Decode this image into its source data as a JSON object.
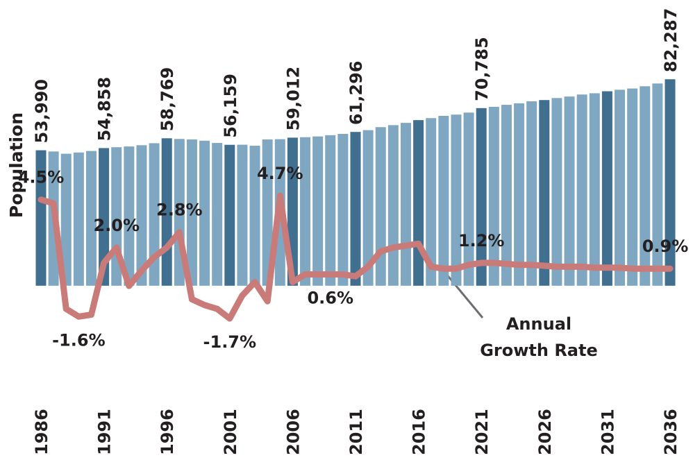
{
  "chart_data": {
    "type": "bar-line",
    "categories": [
      "1986",
      null,
      null,
      null,
      null,
      "1991",
      null,
      null,
      null,
      null,
      "1996",
      null,
      null,
      null,
      null,
      "2001",
      null,
      null,
      null,
      null,
      "2006",
      null,
      null,
      null,
      null,
      "2011",
      null,
      null,
      null,
      null,
      "2016",
      null,
      null,
      null,
      null,
      "2021",
      null,
      null,
      null,
      null,
      "2026",
      null,
      null,
      null,
      null,
      "2031",
      null,
      null,
      null,
      null,
      "2036"
    ],
    "series": [
      {
        "name": "Population",
        "color": "#80a7c1",
        "highlight_color": "#416f90",
        "values": [
          53990,
          53500,
          52600,
          53100,
          53700,
          54858,
          55200,
          55500,
          56000,
          56800,
          58769,
          58500,
          58300,
          57800,
          56900,
          56159,
          56200,
          55800,
          58300,
          58400,
          59012,
          59200,
          59500,
          60000,
          60500,
          61296,
          62000,
          63200,
          64000,
          64900,
          66000,
          66800,
          67700,
          68200,
          69000,
          70785,
          71300,
          72100,
          72700,
          73500,
          74000,
          74800,
          75400,
          76200,
          76700,
          77500,
          78100,
          78600,
          79500,
          80600,
          82287
        ],
        "value_labels": [
          "53,990",
          null,
          null,
          null,
          null,
          "54,858",
          null,
          null,
          null,
          null,
          "58,769",
          null,
          null,
          null,
          null,
          "56,159",
          null,
          null,
          null,
          null,
          "59,012",
          null,
          null,
          null,
          null,
          "61,296",
          null,
          null,
          null,
          null,
          null,
          null,
          null,
          null,
          null,
          "70,785",
          null,
          null,
          null,
          null,
          null,
          null,
          null,
          null,
          null,
          null,
          null,
          null,
          null,
          null,
          "82,287"
        ]
      },
      {
        "name": "Annual Growth Rate",
        "color": "#c97b79",
        "axis": "y2",
        "values": [
          4.5,
          4.3,
          -1.2,
          -1.6,
          -1.5,
          1.2,
          2.0,
          0.0,
          0.8,
          1.5,
          2.0,
          2.8,
          -0.7,
          -1.0,
          -1.2,
          -1.7,
          -0.5,
          0.2,
          -0.8,
          4.7,
          0.2,
          0.6,
          0.6,
          0.6,
          0.6,
          0.5,
          1.0,
          1.8,
          2.0,
          2.1,
          2.2,
          1.0,
          0.9,
          0.9,
          1.1,
          1.2,
          1.2,
          1.15,
          1.1,
          1.1,
          1.05,
          1.0,
          1.0,
          1.0,
          0.95,
          0.95,
          0.95,
          0.9,
          0.9,
          0.9,
          0.9
        ],
        "value_labels": [
          "4.5%",
          null,
          null,
          "-1.6%",
          null,
          null,
          "2.0%",
          null,
          null,
          null,
          null,
          "2.8%",
          null,
          null,
          null,
          "-1.7%",
          null,
          null,
          null,
          "4.7%",
          null,
          null,
          null,
          "0.6%",
          null,
          null,
          null,
          null,
          null,
          null,
          null,
          null,
          null,
          null,
          null,
          "1.2%",
          null,
          null,
          null,
          null,
          null,
          null,
          null,
          null,
          null,
          null,
          null,
          null,
          null,
          null,
          "0.9%"
        ]
      }
    ],
    "ylim": [
      -23000,
      110000
    ],
    "y2lim": [
      -3,
      14.4
    ]
  }
}
